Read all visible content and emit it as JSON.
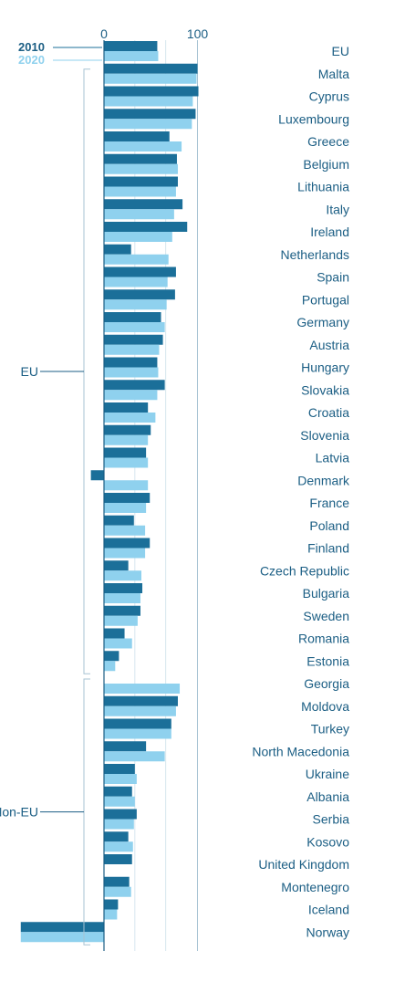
{
  "chart_data": {
    "type": "bar",
    "orientation": "horizontal",
    "legend": [
      "2010",
      "2020"
    ],
    "colors": {
      "2010": "#1b6f99",
      "2020": "#8fd1ee",
      "text": "#1b5e84",
      "axis": "#a7c3d3"
    },
    "xticks": [
      "0",
      "100"
    ],
    "xlim": [
      -90,
      105
    ],
    "groups": [
      {
        "label": "EU",
        "from": 1,
        "to": 27
      },
      {
        "label": "Non-EU",
        "from": 28,
        "to": 39
      }
    ],
    "categories": [
      "EU",
      "Malta",
      "Cyprus",
      "Luxembourg",
      "Greece",
      "Belgium",
      "Lithuania",
      "Italy",
      "Ireland",
      "Netherlands",
      "Spain",
      "Portugal",
      "Germany",
      "Austria",
      "Hungary",
      "Slovakia",
      "Croatia",
      "Slovenia",
      "Latvia",
      "Denmark",
      "France",
      "Poland",
      "Finland",
      "Czech Republic",
      "Bulgaria",
      "Sweden",
      "Romania",
      "Estonia",
      "Georgia",
      "Moldova",
      "Turkey",
      "North Macedonia",
      "Ukraine",
      "Albania",
      "Serbia",
      "Kosovo",
      "United Kingdom",
      "Montenegro",
      "Iceland",
      "Norway"
    ],
    "series": [
      {
        "name": "2010",
        "values": [
          57,
          100,
          101,
          98,
          70,
          78,
          79,
          84,
          89,
          29,
          77,
          76,
          61,
          63,
          57,
          65,
          47,
          50,
          45,
          -14,
          49,
          32,
          49,
          26,
          41,
          39,
          22,
          16,
          0,
          79,
          72,
          45,
          33,
          30,
          35,
          26,
          30,
          27,
          15,
          -89
        ]
      },
      {
        "name": "2020",
        "values": [
          58,
          99,
          95,
          94,
          83,
          79,
          77,
          75,
          73,
          69,
          68,
          67,
          65,
          59,
          58,
          57,
          55,
          47,
          47,
          47,
          45,
          44,
          44,
          40,
          39,
          36,
          30,
          12,
          81,
          77,
          72,
          65,
          35,
          33,
          32,
          31,
          0,
          29,
          14,
          -89
        ]
      }
    ]
  }
}
